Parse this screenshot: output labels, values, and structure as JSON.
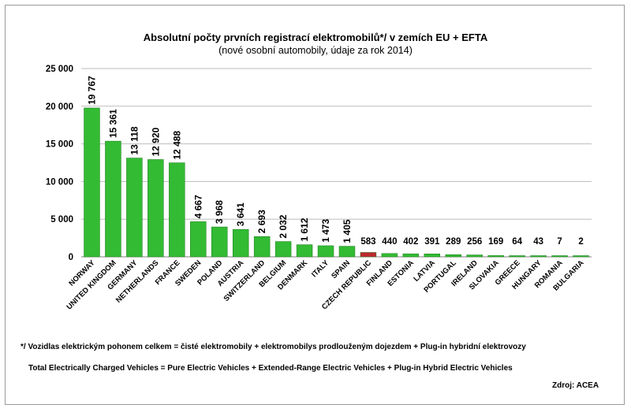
{
  "chart_data": {
    "type": "bar",
    "title": "Absolutní počty prvních registrací elektromobilů*/ v zemích EU + EFTA",
    "subtitle": "(nové osobní automobily, údaje za rok 2014)",
    "categories": [
      "NORWAY",
      "UNITED KINGDOM",
      "GERMANY",
      "NETHERLANDS",
      "FRANCE",
      "SWEDEN",
      "POLAND",
      "AUSTRIA",
      "SWITZERLAND",
      "BELGIUM",
      "DENMARK",
      "ITALY",
      "SPAIN",
      "CZECH REPUBLIC",
      "FINLAND",
      "ESTONIA",
      "LATVIA",
      "PORTUGAL",
      "IRELAND",
      "SLOVAKIA",
      "GREECE",
      "HUNGARY",
      "ROMANIA",
      "BULGARIA"
    ],
    "values": [
      19767,
      15361,
      13118,
      12920,
      12488,
      4667,
      3968,
      3641,
      2693,
      2032,
      1612,
      1473,
      1405,
      583,
      440,
      402,
      391,
      289,
      256,
      169,
      64,
      43,
      7,
      2
    ],
    "value_labels": [
      "19 767",
      "15 361",
      "13 118",
      "12 920",
      "12 488",
      "4 667",
      "3 968",
      "3 641",
      "2 693",
      "2 032",
      "1 612",
      "1 473",
      "1 405",
      "583",
      "440",
      "402",
      "391",
      "289",
      "256",
      "169",
      "64",
      "43",
      "7",
      "2"
    ],
    "yticks": [
      0,
      5000,
      10000,
      15000,
      20000,
      25000
    ],
    "ytick_labels": [
      "0",
      "5 000",
      "10 000",
      "15 000",
      "20 000",
      "25 000"
    ],
    "ylim": [
      0,
      25000
    ],
    "xlabel": "",
    "ylabel": "",
    "grid": true,
    "colors": {
      "default": "#33bb33",
      "highlight": "#c0282d",
      "grid": "#bdbdbd"
    },
    "highlight_category": "CZECH REPUBLIC"
  },
  "notes": {
    "line1": "*/ Vozidlas elektrickým pohonem celkem = čisté elektromobily + elektromobilys prodlouženým dojezdem + Plug-in hybridní elektrovozy",
    "line2": "Total Electrically Charged Vehicles = Pure Electric Vehicles + Extended-Range Electric Vehicles + Plug-in Hybrid Electric Vehicles",
    "source": "Zdroj: ACEA"
  }
}
